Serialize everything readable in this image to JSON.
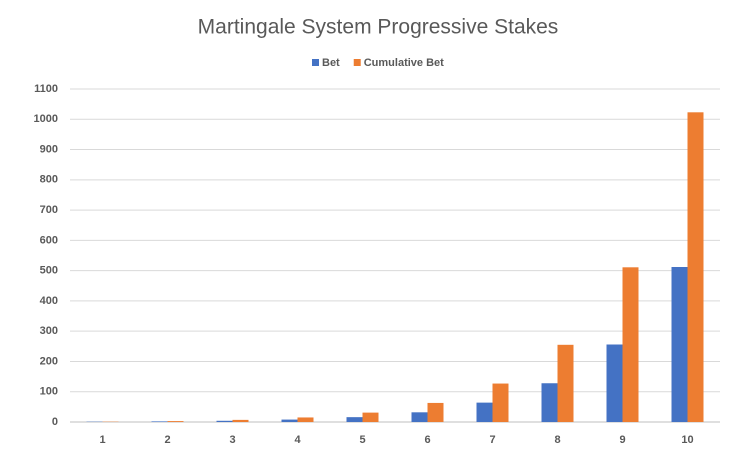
{
  "chart_data": {
    "type": "bar",
    "title": "Martingale System Progressive Stakes",
    "categories": [
      "1",
      "2",
      "3",
      "4",
      "5",
      "6",
      "7",
      "8",
      "9",
      "10"
    ],
    "series": [
      {
        "name": "Bet",
        "color": "#4472c4",
        "values": [
          1,
          2,
          4,
          8,
          16,
          32,
          64,
          128,
          256,
          512
        ]
      },
      {
        "name": "Cumulative Bet",
        "color": "#ed7d31",
        "values": [
          1,
          3,
          7,
          15,
          31,
          63,
          127,
          255,
          511,
          1023
        ]
      }
    ],
    "ylim": [
      0,
      1100
    ],
    "yticks": [
      0,
      100,
      200,
      300,
      400,
      500,
      600,
      700,
      800,
      900,
      1000,
      1100
    ],
    "grid": true,
    "legend": "top"
  }
}
